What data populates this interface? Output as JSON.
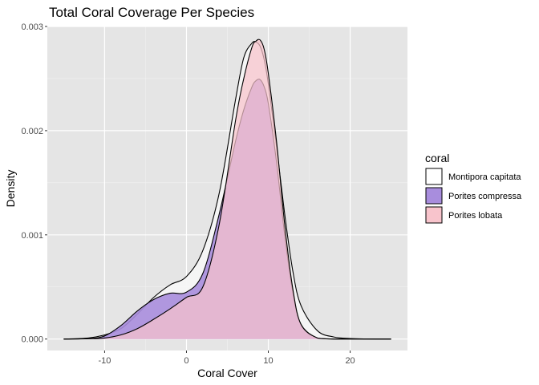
{
  "chart_data": {
    "type": "area",
    "title": "Total Coral Coverage Per Species",
    "xlabel": "Coral Cover",
    "ylabel": "Density",
    "xlim": [
      -17,
      27
    ],
    "ylim": [
      -0.00011,
      0.003
    ],
    "x_ticks": [
      -10,
      0,
      10,
      20
    ],
    "y_ticks": [
      0.0,
      0.001,
      0.002,
      0.003
    ],
    "x_tick_labels": [
      "-10",
      "0",
      "10",
      "20"
    ],
    "y_tick_labels": [
      "0.000",
      "0.001",
      "0.002",
      "0.003"
    ],
    "grid": true,
    "legend": {
      "title": "coral",
      "position": "right",
      "entries": [
        {
          "name": "Montipora capitata",
          "fill": "#ffffff",
          "stroke": "#000000"
        },
        {
          "name": "Porites compressa",
          "fill": "#a88ddd",
          "stroke": "#000000"
        },
        {
          "name": "Porites lobata",
          "fill": "#f8c4cc",
          "stroke": "#000000"
        }
      ]
    },
    "x": [
      -15,
      -12,
      -10,
      -8,
      -6,
      -4,
      -2,
      0,
      2,
      4,
      6,
      7,
      8,
      8.5,
      9,
      9.5,
      10,
      11,
      12,
      13,
      14,
      16,
      18,
      20,
      22,
      25
    ],
    "series": [
      {
        "name": "Montipora capitata",
        "fill": "#f5f5f5",
        "opacity": 0.95,
        "values": [
          0,
          1e-05,
          4e-05,
          0.0001,
          0.00024,
          0.0004,
          0.00052,
          0.0006,
          0.00085,
          0.0014,
          0.0023,
          0.0027,
          0.00284,
          0.00285,
          0.00281,
          0.00268,
          0.00245,
          0.00185,
          0.0012,
          0.00065,
          0.00032,
          8e-05,
          2e-05,
          5e-06,
          1e-06,
          0
        ]
      },
      {
        "name": "Porites compressa",
        "fill": "#a88ddd",
        "opacity": 0.9,
        "values": [
          0,
          5e-06,
          3e-05,
          0.00013,
          0.00027,
          0.00038,
          0.00044,
          0.00045,
          0.00063,
          0.0012,
          0.0019,
          0.0022,
          0.00242,
          0.00248,
          0.00249,
          0.00242,
          0.00226,
          0.0017,
          0.001,
          0.00045,
          0.00014,
          1e-05,
          0,
          0,
          0,
          0
        ]
      },
      {
        "name": "Porites lobata",
        "fill": "#f8c4cc",
        "opacity": 0.72,
        "values": [
          0,
          3e-06,
          1e-05,
          4e-05,
          0.0001,
          0.00019,
          0.00029,
          0.0004,
          0.0005,
          0.0011,
          0.0021,
          0.0025,
          0.0028,
          0.00286,
          0.00287,
          0.00278,
          0.00255,
          0.0019,
          0.0011,
          0.00048,
          0.00014,
          1e-05,
          0,
          0,
          0,
          0
        ]
      }
    ]
  }
}
